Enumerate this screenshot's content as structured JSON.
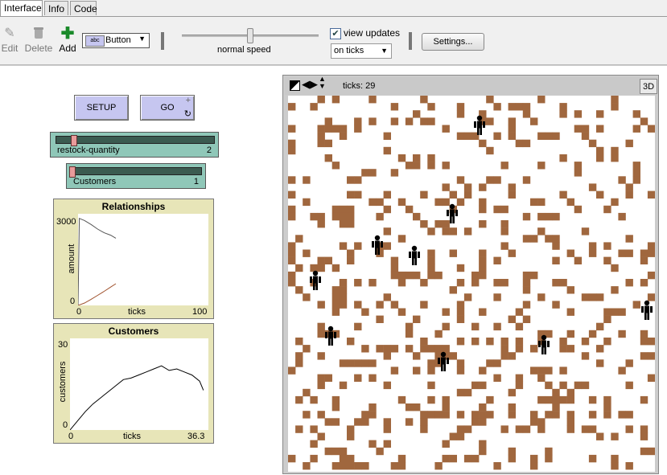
{
  "tabs": [
    {
      "label": "Interface"
    },
    {
      "label": "Info"
    },
    {
      "label": "Code"
    }
  ],
  "toolbar": {
    "edit_label": "Edit",
    "delete_label": "Delete",
    "add_label": "Add",
    "widget_type": "Button",
    "speed_label": "normal speed",
    "view_updates_label": "view updates",
    "view_updates_checked": true,
    "update_mode": "on ticks",
    "settings_label": "Settings..."
  },
  "buttons": {
    "setup_label": "SETUP",
    "go_label": "GO"
  },
  "sliders": [
    {
      "label": "restock-quantity",
      "value": "2"
    },
    {
      "label": "Customers",
      "value": "1"
    }
  ],
  "plots": [
    {
      "title": "Relationships",
      "ylabel": "amount",
      "xlabel": "ticks",
      "ymax": "3000",
      "ymin": "0",
      "xmin": "0",
      "xmax": "100"
    },
    {
      "title": "Customers",
      "ylabel": "customers",
      "xlabel": "ticks",
      "ymax": "30",
      "ymin": "0",
      "xmin": "0",
      "xmax": "36.3"
    }
  ],
  "world": {
    "ticks_label": "ticks: 29",
    "btn_3d": "3D",
    "patch_color": "#a0673e",
    "agent_color": "#000000"
  },
  "chart_data": [
    {
      "type": "line",
      "title": "Relationships",
      "xlabel": "ticks",
      "ylabel": "amount",
      "xlim": [
        0,
        100
      ],
      "ylim": [
        0,
        3000
      ],
      "series": [
        {
          "color": "#555555",
          "x": [
            0,
            1,
            5,
            10,
            15,
            20,
            25,
            29
          ],
          "y": [
            0,
            2850,
            2780,
            2650,
            2500,
            2380,
            2300,
            2200
          ]
        },
        {
          "color": "#a0522d",
          "x": [
            0,
            5,
            10,
            15,
            20,
            25,
            29
          ],
          "y": [
            0,
            80,
            200,
            330,
            460,
            600,
            710
          ]
        }
      ]
    },
    {
      "type": "line",
      "title": "Customers",
      "xlabel": "ticks",
      "ylabel": "customers",
      "xlim": [
        0,
        36.3
      ],
      "ylim": [
        0,
        30
      ],
      "series": [
        {
          "color": "#000000",
          "x": [
            0,
            2,
            4,
            6,
            8,
            10,
            12,
            14,
            16,
            18,
            20,
            22,
            24,
            26,
            28,
            30,
            32,
            34,
            35
          ],
          "y": [
            0,
            3,
            6,
            8.5,
            10.5,
            12.5,
            14.5,
            16.5,
            17,
            18,
            19,
            20,
            21,
            19.5,
            20,
            19,
            18,
            16,
            13
          ]
        }
      ]
    }
  ]
}
